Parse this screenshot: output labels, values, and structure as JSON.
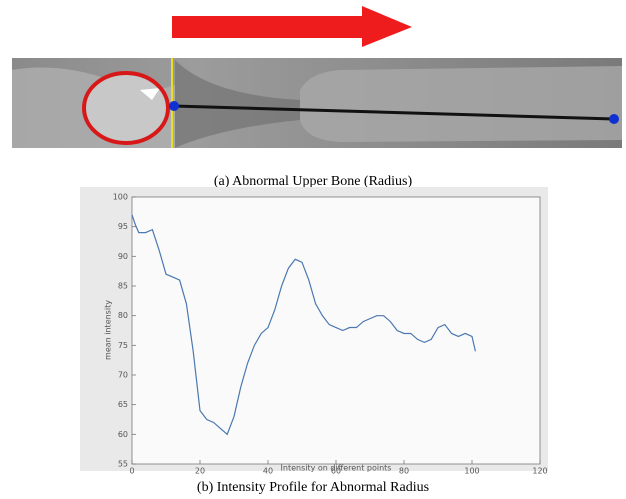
{
  "captions": {
    "a": "(a) Abnormal Upper Bone (Radius)",
    "b": "(b) Intensity Profile for Abnormal Radius"
  },
  "chart_data": {
    "type": "line",
    "xlabel": "Intensity on different points",
    "ylabel": "mean intensity",
    "x": [
      0,
      1,
      2,
      4,
      6,
      8,
      10,
      12,
      14,
      16,
      18,
      20,
      22,
      24,
      26,
      28,
      30,
      32,
      34,
      36,
      38,
      40,
      42,
      44,
      46,
      48,
      50,
      52,
      54,
      56,
      58,
      60,
      62,
      64,
      66,
      68,
      70,
      72,
      74,
      76,
      78,
      80,
      82,
      84,
      86,
      88,
      90,
      92,
      94,
      96,
      98,
      100,
      101
    ],
    "series": [
      {
        "color": "#4a78b0",
        "values": [
          97,
          95.3,
          94,
          94,
          94.5,
          91,
          87,
          86.5,
          86,
          82,
          74,
          64,
          62.5,
          62,
          61,
          60,
          63,
          68,
          72,
          75,
          77,
          78,
          81,
          85,
          88,
          89.5,
          89,
          86,
          82,
          80,
          78.5,
          78,
          77.5,
          78,
          78,
          79,
          79.5,
          80,
          80,
          79,
          77.5,
          77,
          77,
          76,
          75.5,
          76,
          78,
          78.5,
          77,
          76.5,
          77,
          76.5,
          74
        ]
      }
    ],
    "xlim": [
      0,
      120
    ],
    "xticks": [
      0,
      20,
      40,
      60,
      80,
      100,
      120
    ],
    "ylim": [
      55,
      100
    ],
    "yticks": [
      55,
      60,
      65,
      70,
      75,
      80,
      85,
      90,
      95,
      100
    ]
  }
}
